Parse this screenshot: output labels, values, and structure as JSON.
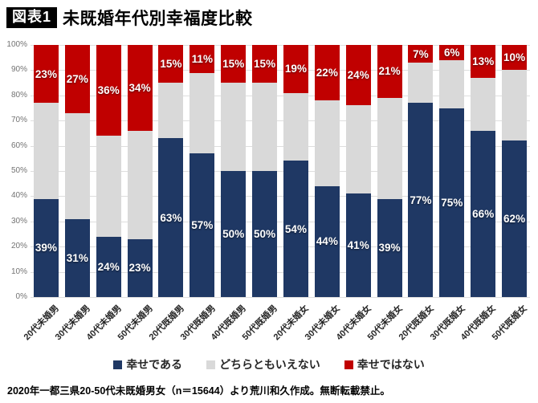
{
  "header": {
    "badge": "図表1",
    "title": "未既婚年代別幸福度比較"
  },
  "chart_data": {
    "type": "bar",
    "variant": "stacked-100-percent-column",
    "title": "未既婚年代別幸福度比較",
    "categories": [
      "20代未婚男",
      "30代未婚男",
      "40代未婚男",
      "50代未婚男",
      "20代既婚男",
      "30代既婚男",
      "40代既婚男",
      "50代既婚男",
      "20代未婚女",
      "30代未婚女",
      "40代未婚女",
      "50代未婚女",
      "20代既婚女",
      "30代既婚女",
      "40代既婚女",
      "50代既婚女"
    ],
    "series": [
      {
        "key": "happy",
        "name": "幸せである",
        "color": "#1f3864",
        "labels_visible": true,
        "values": [
          39,
          31,
          24,
          23,
          63,
          57,
          50,
          50,
          54,
          44,
          41,
          39,
          77,
          75,
          66,
          62
        ]
      },
      {
        "key": "neutral",
        "name": "どちらともいえない",
        "color": "#d9d9d9",
        "labels_visible": false,
        "values": [
          38,
          42,
          40,
          43,
          22,
          32,
          35,
          35,
          27,
          34,
          35,
          40,
          16,
          19,
          21,
          28
        ]
      },
      {
        "key": "unhappy",
        "name": "幸せではない",
        "color": "#c00000",
        "labels_visible": true,
        "values": [
          23,
          27,
          36,
          34,
          15,
          11,
          15,
          15,
          19,
          22,
          24,
          21,
          7,
          6,
          13,
          10
        ]
      }
    ],
    "y_axis": {
      "min": 0,
      "max": 100,
      "step": 10,
      "tick_suffix": "%"
    },
    "xlabel": "",
    "ylabel": "",
    "grid": true,
    "legend_position": "bottom",
    "label_suffix": "%"
  },
  "footer": {
    "text": "2020年一都三県20-50代未既婚男女（n＝15644）より荒川和久作成。無断転載禁止。"
  },
  "colors": {
    "happy": "#1f3864",
    "neutral": "#d9d9d9",
    "unhappy": "#c00000",
    "gridline": "#dedede",
    "axis_text": "#737373"
  }
}
